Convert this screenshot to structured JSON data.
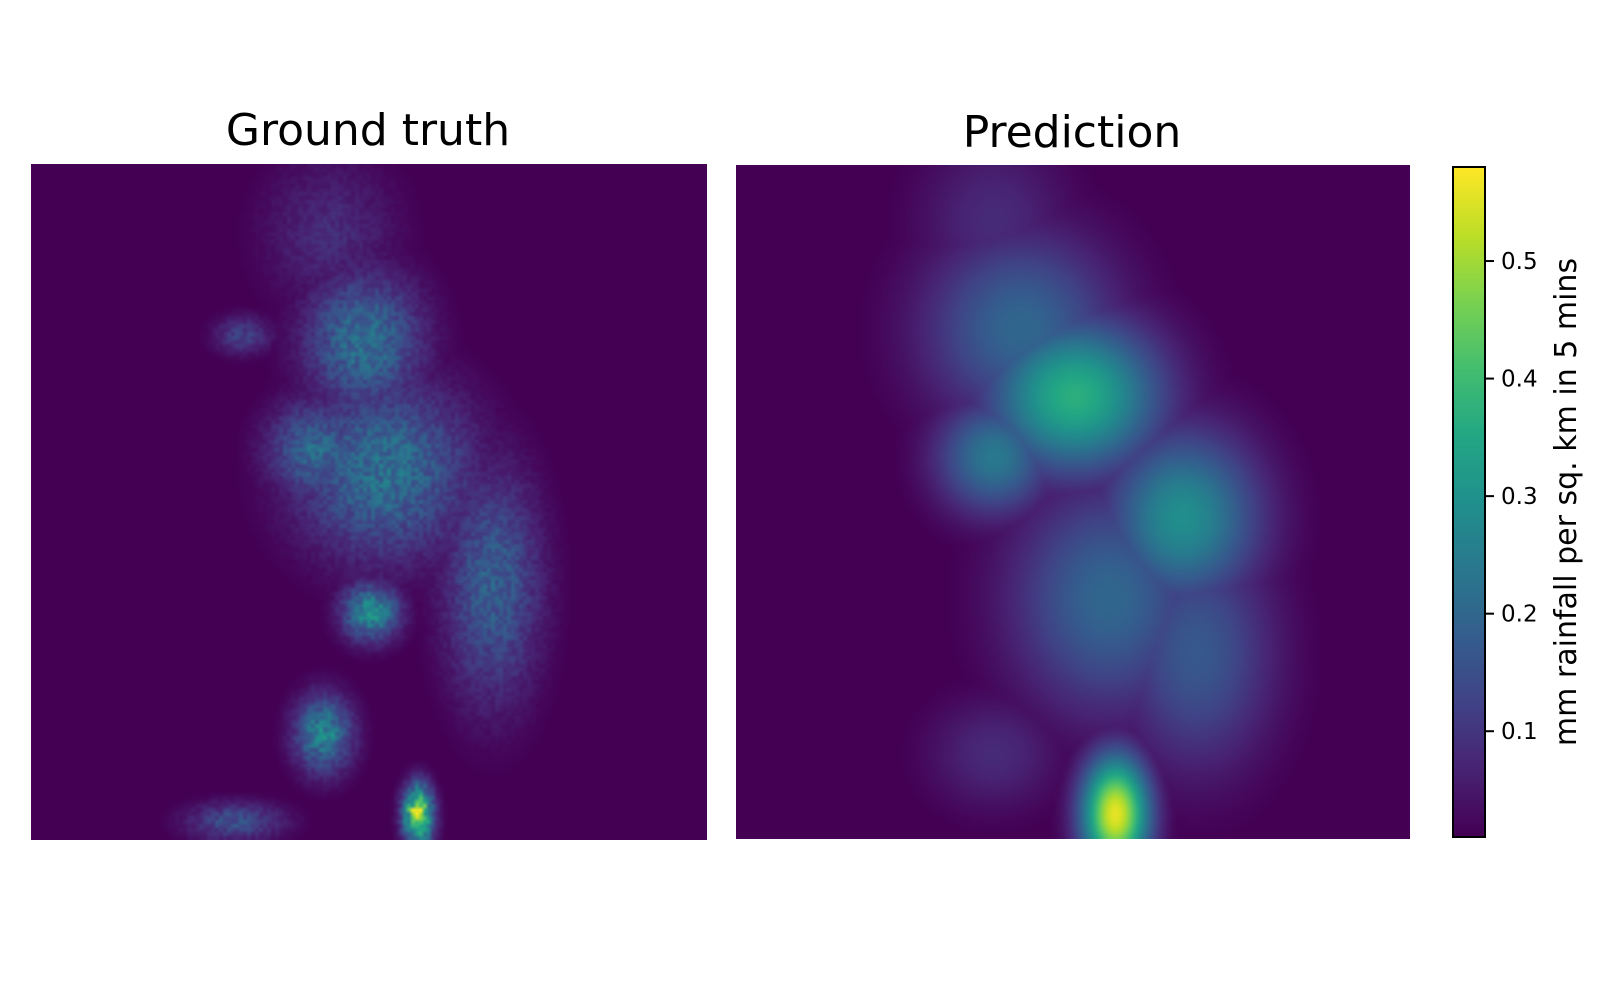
{
  "chart_data": {
    "type": "heatmap",
    "panels": [
      {
        "title": "Ground truth",
        "background_value": 0.0,
        "features": [
          {
            "region": "upper plume (top, faint)",
            "x_center": 0.44,
            "y_center": 0.1,
            "spread_x": 0.07,
            "spread_y": 0.08,
            "peak": 0.08
          },
          {
            "region": "upper-mid plume",
            "x_center": 0.49,
            "y_center": 0.26,
            "spread_x": 0.06,
            "spread_y": 0.07,
            "peak": 0.22
          },
          {
            "region": "central band",
            "x_center": 0.52,
            "y_center": 0.45,
            "spread_x": 0.09,
            "spread_y": 0.09,
            "peak": 0.22
          },
          {
            "region": "left-central arm",
            "x_center": 0.42,
            "y_center": 0.42,
            "spread_x": 0.05,
            "spread_y": 0.05,
            "peak": 0.2
          },
          {
            "region": "right lower band",
            "x_center": 0.68,
            "y_center": 0.62,
            "spread_x": 0.05,
            "spread_y": 0.12,
            "peak": 0.18
          },
          {
            "region": "small outlier cloud",
            "x_center": 0.31,
            "y_center": 0.25,
            "spread_x": 0.03,
            "spread_y": 0.02,
            "peak": 0.12
          },
          {
            "region": "diagonal streak",
            "x_center": 0.5,
            "y_center": 0.66,
            "spread_x": 0.03,
            "spread_y": 0.03,
            "peak": 0.28
          },
          {
            "region": "lower-left streak",
            "x_center": 0.43,
            "y_center": 0.84,
            "spread_x": 0.03,
            "spread_y": 0.04,
            "peak": 0.26
          },
          {
            "region": "bottom-left tail",
            "x_center": 0.3,
            "y_center": 0.97,
            "spread_x": 0.05,
            "spread_y": 0.02,
            "peak": 0.15
          },
          {
            "region": "bottom hotspot",
            "x_center": 0.57,
            "y_center": 0.96,
            "spread_x": 0.015,
            "spread_y": 0.03,
            "peak": 0.55
          }
        ]
      },
      {
        "title": "Prediction",
        "background_value": 0.0,
        "features": [
          {
            "region": "upper plume (top, faint)",
            "x_center": 0.38,
            "y_center": 0.08,
            "spread_x": 0.08,
            "spread_y": 0.09,
            "peak": 0.08
          },
          {
            "region": "upper plume",
            "x_center": 0.42,
            "y_center": 0.24,
            "spread_x": 0.1,
            "spread_y": 0.1,
            "peak": 0.2
          },
          {
            "region": "upper-central max",
            "x_center": 0.5,
            "y_center": 0.34,
            "spread_x": 0.09,
            "spread_y": 0.08,
            "peak": 0.37
          },
          {
            "region": "central-left lobe",
            "x_center": 0.38,
            "y_center": 0.43,
            "spread_x": 0.06,
            "spread_y": 0.06,
            "peak": 0.24
          },
          {
            "region": "right central lobe",
            "x_center": 0.66,
            "y_center": 0.52,
            "spread_x": 0.08,
            "spread_y": 0.09,
            "peak": 0.29
          },
          {
            "region": "middle trunk",
            "x_center": 0.55,
            "y_center": 0.64,
            "spread_x": 0.1,
            "spread_y": 0.12,
            "peak": 0.2
          },
          {
            "region": "lower right trunk",
            "x_center": 0.68,
            "y_center": 0.72,
            "spread_x": 0.08,
            "spread_y": 0.12,
            "peak": 0.17
          },
          {
            "region": "lower-left tail",
            "x_center": 0.38,
            "y_center": 0.87,
            "spread_x": 0.07,
            "spread_y": 0.06,
            "peak": 0.08
          },
          {
            "region": "bottom hotspot",
            "x_center": 0.56,
            "y_center": 0.96,
            "spread_x": 0.035,
            "spread_y": 0.06,
            "peak": 0.56
          }
        ]
      }
    ],
    "colorbar": {
      "colormap": "viridis",
      "label": "mm rainfall per sq. km in 5 mins",
      "range": [
        0.01,
        0.58
      ],
      "ticks": [
        0.1,
        0.2,
        0.3,
        0.4,
        0.5
      ],
      "tick_labels": [
        "0.1",
        "0.2",
        "0.3",
        "0.4",
        "0.5"
      ]
    },
    "xlabel": "",
    "ylabel": "",
    "grid": false
  }
}
